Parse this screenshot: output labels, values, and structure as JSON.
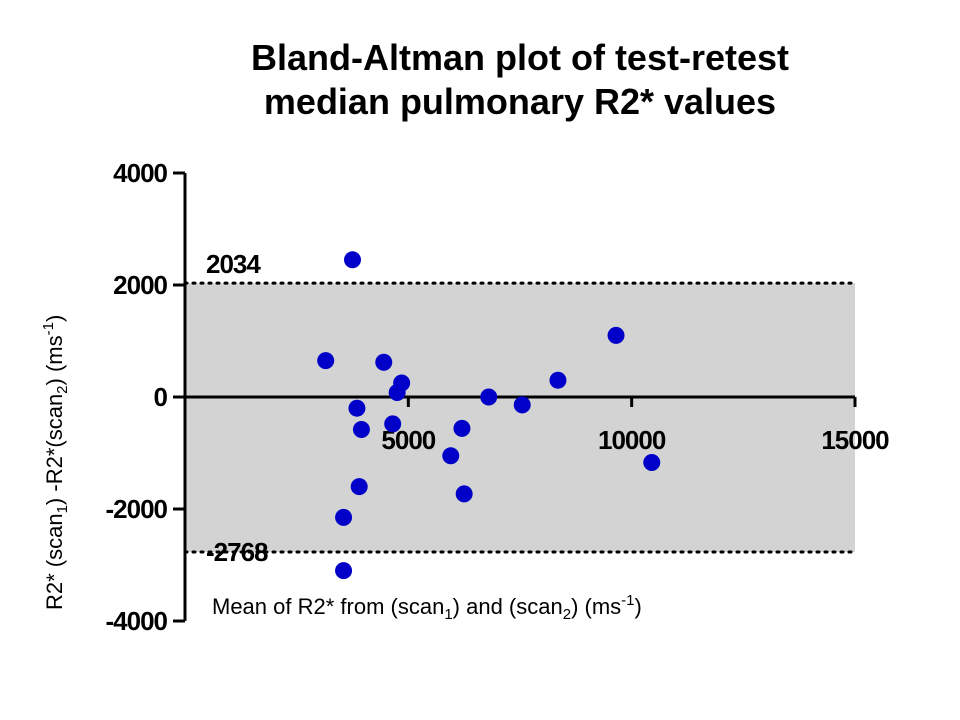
{
  "chart_data": {
    "type": "scatter",
    "title_line1": "Bland-Altman plot of test-retest",
    "title_line2": "median pulmonary R2* values",
    "xlabel": {
      "t1": "Mean of R2* from (scan",
      "s1": "1",
      "t2": ") and (scan",
      "s2": "2",
      "t3": ") (ms",
      "sup": "-1",
      "t4": ")"
    },
    "ylabel": {
      "t1": "R2* (scan",
      "s1": "1",
      "t2": ") -R2*(scan",
      "s2": "2",
      "t3": ") (ms",
      "sup": "-1",
      "t4": ")"
    },
    "xlim": [
      0,
      15000
    ],
    "ylim": [
      -4000,
      4000
    ],
    "xticks": [
      5000,
      10000,
      15000
    ],
    "xtick_labels": [
      "5000",
      "10000",
      "15000"
    ],
    "yticks": [
      4000,
      2000,
      0,
      -2000,
      -4000
    ],
    "ytick_labels": [
      "4000",
      "2000",
      "0",
      "-2000",
      "-4000"
    ],
    "limits_of_agreement": {
      "upper": 2034,
      "lower": -2768
    },
    "loa_labels": {
      "upper": "2034",
      "lower": "-2768"
    },
    "band_color": "#d3d3d3",
    "point_color": "#0000c8",
    "points": [
      {
        "x": 3750,
        "y": 2450
      },
      {
        "x": 3150,
        "y": 650
      },
      {
        "x": 4450,
        "y": 620
      },
      {
        "x": 4850,
        "y": 250
      },
      {
        "x": 4750,
        "y": 80
      },
      {
        "x": 3850,
        "y": -200
      },
      {
        "x": 3950,
        "y": -580
      },
      {
        "x": 4650,
        "y": -480
      },
      {
        "x": 3900,
        "y": -1600
      },
      {
        "x": 3550,
        "y": -2150
      },
      {
        "x": 3550,
        "y": -3100
      },
      {
        "x": 5950,
        "y": -1050
      },
      {
        "x": 6250,
        "y": -1730
      },
      {
        "x": 6200,
        "y": -560
      },
      {
        "x": 6800,
        "y": 0
      },
      {
        "x": 7550,
        "y": -140
      },
      {
        "x": 8350,
        "y": 300
      },
      {
        "x": 9650,
        "y": 1100
      },
      {
        "x": 10450,
        "y": -1170
      }
    ]
  }
}
